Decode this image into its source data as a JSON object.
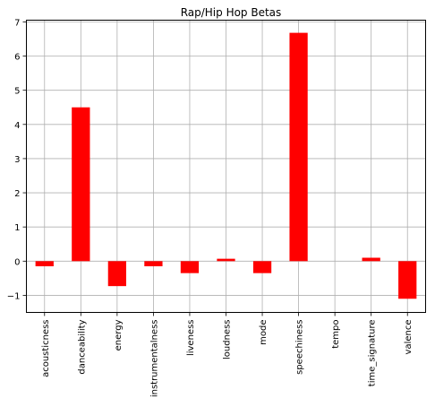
{
  "chart_data": {
    "type": "bar",
    "title": "Rap/Hip Hop Betas",
    "xlabel": "",
    "ylabel": "",
    "categories": [
      "acousticness",
      "danceability",
      "energy",
      "instrumentalness",
      "liveness",
      "loudness",
      "mode",
      "speechiness",
      "tempo",
      "time_signature",
      "valence"
    ],
    "values": [
      -0.15,
      4.5,
      -0.73,
      -0.15,
      -0.35,
      0.07,
      -0.35,
      6.68,
      0.0,
      0.1,
      -1.1
    ],
    "ylim": [
      -1.5,
      7.05
    ],
    "yticks": [
      -1,
      0,
      1,
      2,
      3,
      4,
      5,
      6,
      7
    ],
    "grid": true,
    "bar_color": "#ff0000"
  }
}
